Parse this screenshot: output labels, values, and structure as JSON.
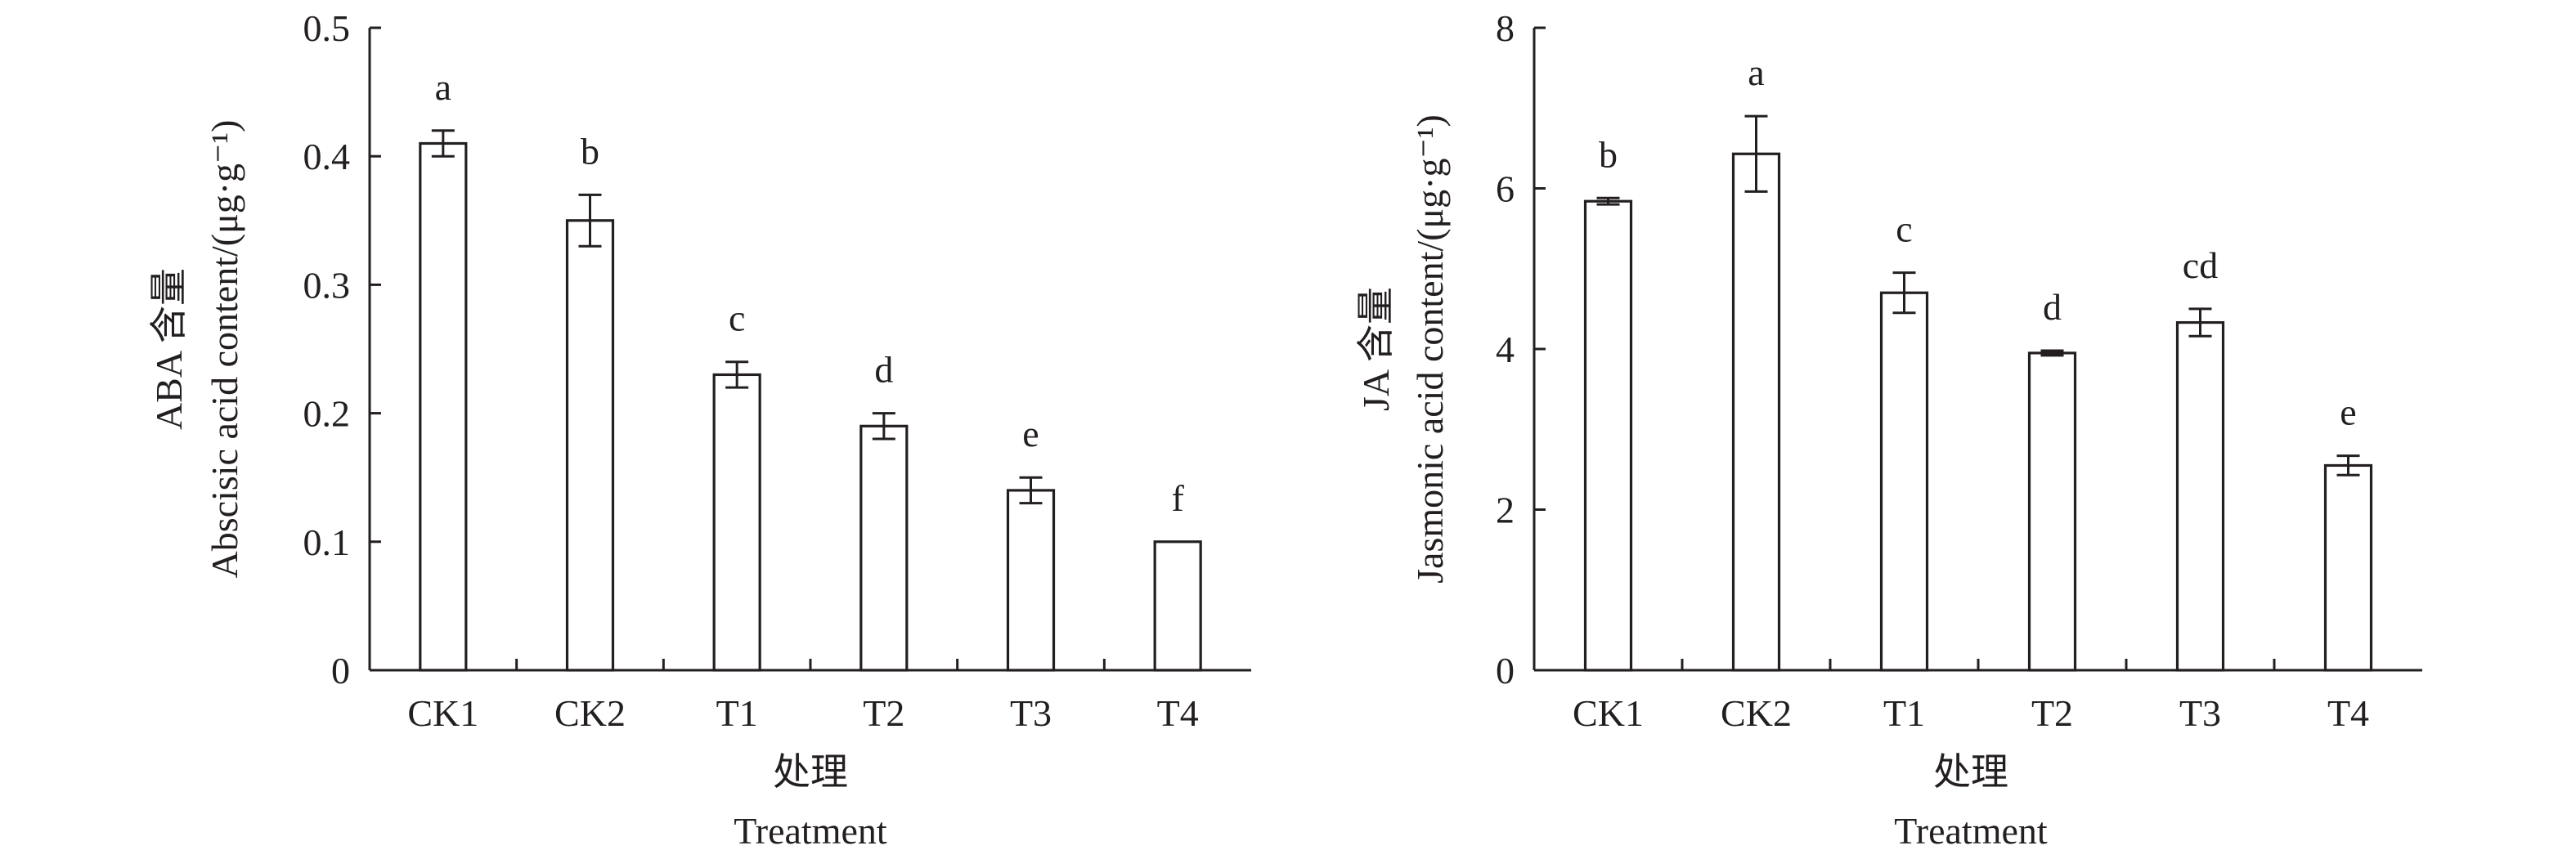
{
  "chart_data": [
    {
      "type": "bar",
      "categories": [
        "CK1",
        "CK2",
        "T1",
        "T2",
        "T3",
        "T4"
      ],
      "values": [
        0.41,
        0.35,
        0.23,
        0.19,
        0.14,
        0.1
      ],
      "errors": [
        0.01,
        0.02,
        0.01,
        0.01,
        0.01,
        0
      ],
      "significance": [
        "a",
        "b",
        "c",
        "d",
        "e",
        "f"
      ],
      "ylim": [
        0,
        0.5
      ],
      "yticks": [
        "0",
        "0.1",
        "0.2",
        "0.3",
        "0.4",
        "0.5"
      ],
      "ylabel_line1": "ABA 含量",
      "ylabel_line2": "Abscisic acid content/(μg·g⁻¹)",
      "xlabel_line1": "处理",
      "xlabel_line2": "Treatment"
    },
    {
      "type": "bar",
      "categories": [
        "CK1",
        "CK2",
        "T1",
        "T2",
        "T3",
        "T4"
      ],
      "values": [
        5.84,
        6.43,
        4.7,
        3.95,
        4.33,
        2.55
      ],
      "errors": [
        0.04,
        0.47,
        0.25,
        0.03,
        0.17,
        0.12
      ],
      "significance": [
        "b",
        "a",
        "c",
        "d",
        "cd",
        "e"
      ],
      "ylim": [
        0,
        8
      ],
      "yticks": [
        "0",
        "2",
        "4",
        "6",
        "8"
      ],
      "ylabel_line1": "JA 含量",
      "ylabel_line2": "Jasmonic acid content/(μg·g⁻¹)",
      "xlabel_line1": "处理",
      "xlabel_line2": "Treatment"
    }
  ]
}
